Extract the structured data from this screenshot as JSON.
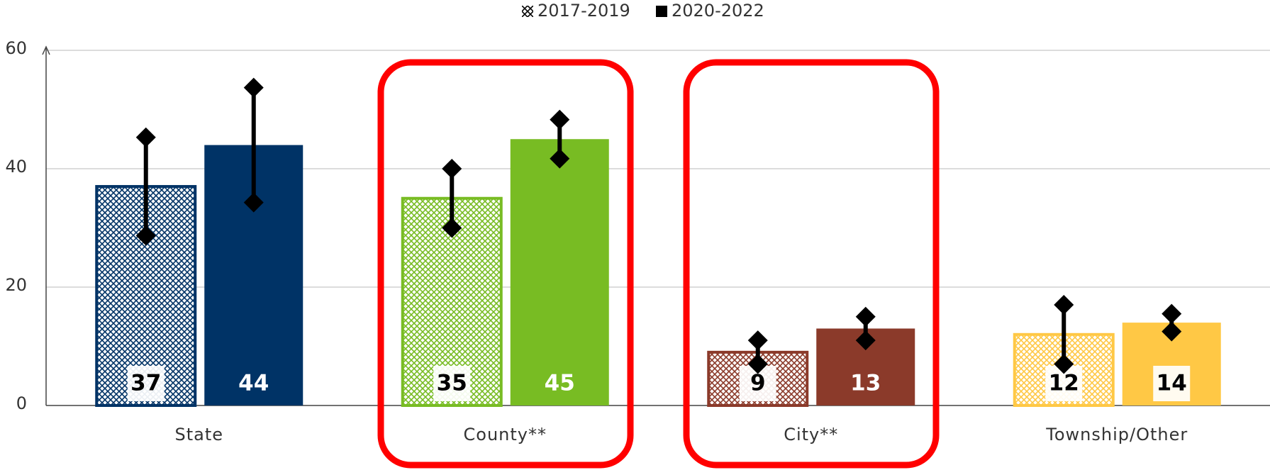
{
  "chart_data": {
    "type": "bar",
    "categories": [
      "State",
      "County**",
      "City**",
      "Township/Other"
    ],
    "colors": [
      "#003366",
      "#78bc23",
      "#8b3a2a",
      "#ffc845"
    ],
    "series": [
      {
        "name": "2017-2019",
        "pattern": "crosshatch",
        "values": [
          37,
          35,
          9,
          12
        ],
        "errors": [
          8.3,
          5,
          2,
          5
        ]
      },
      {
        "name": "2020-2022",
        "pattern": "solid",
        "values": [
          44,
          45,
          13,
          14
        ],
        "errors": [
          9.7,
          3.3,
          2,
          1.5
        ]
      }
    ],
    "ylim": [
      0,
      60
    ],
    "yticks": [
      0,
      20,
      40,
      60
    ],
    "grid": true,
    "legend": "top"
  }
}
